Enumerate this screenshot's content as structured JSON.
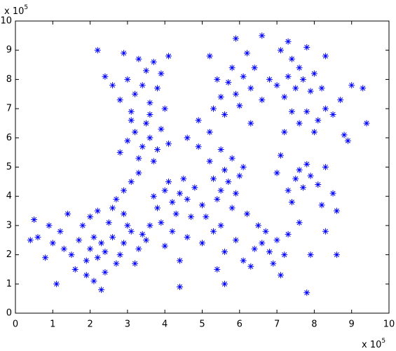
{
  "chart_data": {
    "type": "scatter",
    "color": "#0000ff",
    "marker": "asterisk",
    "xlim": [
      0,
      10
    ],
    "ylim": [
      0,
      10
    ],
    "xticks": [
      0,
      1,
      2,
      3,
      4,
      5,
      6,
      7,
      8,
      9,
      10
    ],
    "yticks": [
      0,
      1,
      2,
      3,
      4,
      5,
      6,
      7,
      8,
      9,
      10
    ],
    "x_multiplier": {
      "base": "x 10",
      "exponent": "5"
    },
    "y_multiplier": {
      "base": "x 10",
      "exponent": "5"
    },
    "x": [
      1.5,
      1.7,
      1.9,
      2.0,
      2.1,
      2.2,
      2.3,
      2.4,
      1.8,
      2.0,
      2.2,
      2.5,
      1.6,
      1.3,
      1.2,
      1.0,
      0.8,
      2.6,
      2.7,
      1.9,
      2.1,
      2.4,
      1.4,
      2.6,
      2.3,
      1.1,
      0.6,
      0.4,
      0.5,
      0.9,
      2.9,
      3.1,
      3.3,
      3.0,
      3.4,
      2.8,
      3.2,
      3.5,
      3.6,
      2.9,
      2.7,
      2.9,
      3.1,
      3.3,
      3.0,
      3.2,
      3.4,
      3.5,
      3.6,
      3.8,
      3.3,
      3.9,
      2.8,
      3.1,
      4.0,
      3.7,
      2.6,
      2.4,
      2.2,
      4.1,
      2.9,
      3.6,
      3.2,
      3.4,
      3.6,
      3.8,
      3.3,
      3.0,
      3.9,
      3.5,
      2.8,
      4.1,
      3.1,
      3.7,
      4.0,
      4.2,
      4.4,
      4.6,
      4.1,
      4.5,
      3.8,
      4.3,
      4.7,
      3.9,
      4.8,
      4.2,
      4.6,
      4.0,
      4.4,
      4.4,
      3.7,
      5.0,
      5.3,
      5.5,
      5.7,
      5.9,
      5.4,
      5.6,
      6.0,
      5.2,
      5.8,
      5.1,
      5.5,
      6.2,
      5.3,
      5.9,
      5.6,
      5.0,
      5.4,
      5.6,
      6.1,
      4.9,
      5.2,
      5.5,
      4.6,
      4.9,
      5.8,
      6.1,
      5.7,
      5.9,
      6.1,
      6.3,
      5.8,
      6.0,
      5.5,
      6.4,
      5.4,
      6.6,
      5.9,
      6.6,
      5.2,
      6.2,
      5.6,
      6.3,
      5.3,
      6.8,
      7.3,
      7.5,
      7.7,
      7.9,
      7.6,
      7.2,
      8.0,
      7.4,
      7.1,
      7.3,
      8.3,
      7.0,
      8.2,
      7.8,
      7.8,
      8.1,
      8.3,
      7.6,
      8.5,
      8.0,
      8.7,
      7.4,
      8.8,
      9.0,
      9.3,
      9.4,
      8.9,
      7.2,
      7.5,
      7.7,
      7.9,
      7.6,
      7.3,
      8.1,
      7.8,
      8.3,
      7.4,
      8.5,
      7.0,
      8.6,
      7.1,
      8.2,
      6.6,
      6.8,
      7.0,
      6.7,
      6.4,
      7.2,
      6.9,
      6.5,
      7.3,
      7.1,
      6.3,
      7.8,
      7.9,
      8.6,
      8.3,
      7.6
    ],
    "values": [
      2.0,
      2.5,
      1.8,
      2.2,
      2.6,
      1.9,
      2.4,
      2.1,
      3.0,
      3.3,
      3.5,
      3.1,
      1.5,
      2.2,
      2.8,
      2.4,
      1.9,
      2.6,
      1.7,
      1.3,
      1.1,
      1.4,
      3.4,
      3.6,
      0.8,
      1.0,
      2.6,
      2.5,
      3.2,
      3.0,
      2.4,
      2.8,
      2.2,
      3.0,
      2.7,
      2.0,
      1.7,
      2.5,
      3.0,
      3.4,
      3.9,
      4.2,
      4.5,
      4.8,
      8.0,
      7.5,
      7.8,
      8.3,
      7.2,
      7.7,
      8.7,
      8.2,
      7.3,
      6.9,
      7.0,
      8.6,
      7.8,
      8.1,
      9.0,
      8.8,
      8.9,
      6.8,
      6.2,
      5.7,
      6.0,
      5.6,
      5.3,
      5.9,
      6.3,
      6.5,
      5.5,
      5.8,
      6.6,
      5.2,
      4.2,
      3.8,
      4.1,
      3.9,
      4.5,
      4.6,
      3.6,
      3.4,
      3.3,
      3.1,
      4.3,
      2.8,
      2.6,
      2.3,
      1.8,
      0.9,
      4.0,
      3.7,
      4.6,
      4.2,
      4.5,
      4.1,
      3.9,
      4.9,
      4.7,
      5.2,
      3.6,
      3.3,
      3.0,
      3.4,
      2.8,
      2.5,
      2.1,
      2.4,
      1.5,
      1.0,
      1.8,
      5.7,
      6.2,
      5.6,
      6.0,
      6.6,
      5.3,
      5.0,
      7.9,
      7.5,
      8.1,
      7.7,
      8.4,
      7.1,
      7.4,
      8.4,
      8.0,
      7.3,
      9.4,
      9.5,
      8.8,
      8.9,
      6.8,
      6.5,
      7.0,
      8.0,
      8.1,
      7.7,
      8.0,
      7.6,
      8.4,
      7.4,
      8.2,
      8.7,
      9.0,
      9.3,
      8.8,
      7.8,
      7.7,
      9.1,
      6.9,
      6.6,
      7.0,
      6.5,
      6.8,
      6.2,
      7.3,
      6.9,
      6.1,
      7.8,
      7.7,
      6.5,
      5.9,
      6.2,
      4.6,
      4.3,
      4.7,
      4.9,
      4.2,
      4.4,
      5.1,
      5.0,
      3.8,
      4.1,
      4.8,
      3.5,
      5.4,
      3.7,
      2.4,
      2.1,
      2.5,
      2.8,
      2.2,
      2.0,
      1.7,
      3.0,
      2.7,
      1.3,
      1.6,
      0.7,
      2.0,
      2.0,
      2.8,
      3.1
    ]
  }
}
